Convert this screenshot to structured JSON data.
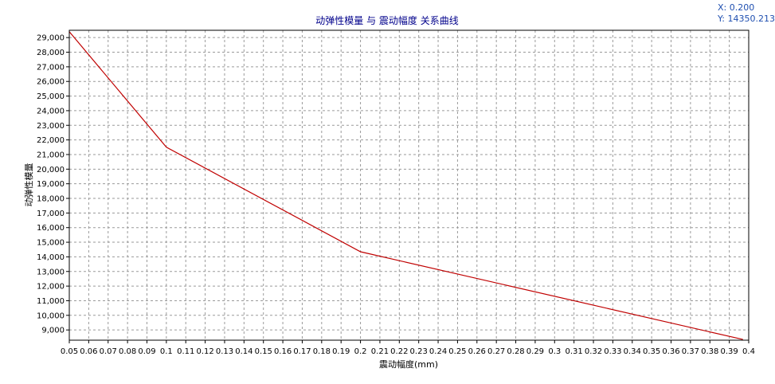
{
  "readout": {
    "x_text": "X: 0.200",
    "y_text": "Y: 14350.213"
  },
  "chart_data": {
    "type": "line",
    "title": "动弹性模量 与 震动幅度 关系曲线",
    "xlabel": "震动幅度(mm)",
    "ylabel": "动弹性模量",
    "xlim": [
      0.05,
      0.4
    ],
    "ylim": [
      8300,
      29500
    ],
    "grid": true,
    "x_ticks": [
      0.05,
      0.06,
      0.07,
      0.08,
      0.09,
      0.1,
      0.11,
      0.12,
      0.13,
      0.14,
      0.15,
      0.16,
      0.17,
      0.18,
      0.19,
      0.2,
      0.21,
      0.22,
      0.23,
      0.24,
      0.25,
      0.26,
      0.27,
      0.28,
      0.29,
      0.3,
      0.31,
      0.32,
      0.33,
      0.34,
      0.35,
      0.36,
      0.37,
      0.38,
      0.39,
      0.4
    ],
    "x_tick_labels": [
      "0.05",
      "0.06",
      "0.07",
      "0.08",
      "0.09",
      "0.1",
      "0.11",
      "0.12",
      "0.13",
      "0.14",
      "0.15",
      "0.16",
      "0.17",
      "0.18",
      "0.19",
      "0.2",
      "0.21",
      "0.22",
      "0.23",
      "0.24",
      "0.25",
      "0.26",
      "0.27",
      "0.28",
      "0.29",
      "0.3",
      "0.31",
      "0.32",
      "0.33",
      "0.34",
      "0.35",
      "0.36",
      "0.37",
      "0.38",
      "0.39",
      "0.4"
    ],
    "y_ticks": [
      9000,
      10000,
      11000,
      12000,
      13000,
      14000,
      15000,
      16000,
      17000,
      18000,
      19000,
      20000,
      21000,
      22000,
      23000,
      24000,
      25000,
      26000,
      27000,
      28000,
      29000
    ],
    "y_tick_labels": [
      "9,000",
      "10,000",
      "11,000",
      "12,000",
      "13,000",
      "14,000",
      "15,000",
      "16,000",
      "17,000",
      "18,000",
      "19,000",
      "20,000",
      "21,000",
      "22,000",
      "23,000",
      "24,000",
      "25,000",
      "26,000",
      "27,000",
      "28,000",
      "29,000"
    ],
    "series": [
      {
        "color": "#c00000",
        "x": [
          0.05,
          0.1,
          0.2,
          0.397
        ],
        "y": [
          29400,
          21500,
          14350,
          8350
        ]
      }
    ]
  }
}
